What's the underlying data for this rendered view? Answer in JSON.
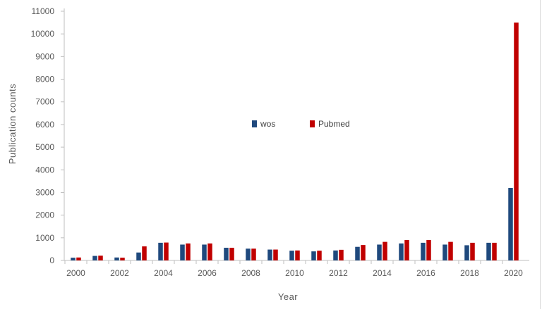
{
  "chart_data": {
    "type": "bar",
    "title": "",
    "xlabel": "Year",
    "ylabel": "Publication counts",
    "ylim": [
      0,
      11000
    ],
    "y_ticks": [
      0,
      1000,
      2000,
      3000,
      4000,
      5000,
      6000,
      7000,
      8000,
      9000,
      10000,
      11000
    ],
    "x_tick_labels": [
      "2000",
      "2002",
      "2004",
      "2006",
      "2008",
      "2010",
      "2012",
      "2014",
      "2016",
      "2018",
      "2020"
    ],
    "categories": [
      2000,
      2001,
      2002,
      2003,
      2004,
      2005,
      2006,
      2007,
      2008,
      2009,
      2010,
      2011,
      2012,
      2013,
      2014,
      2015,
      2016,
      2017,
      2018,
      2019,
      2020
    ],
    "series": [
      {
        "name": "wos",
        "color": "#1f497d",
        "values": [
          120,
          200,
          130,
          350,
          780,
          700,
          700,
          560,
          520,
          480,
          430,
          400,
          440,
          600,
          700,
          750,
          780,
          700,
          670,
          780,
          3200
        ]
      },
      {
        "name": "Pubmed",
        "color": "#c00000",
        "values": [
          130,
          210,
          120,
          620,
          790,
          750,
          750,
          560,
          520,
          480,
          440,
          430,
          470,
          680,
          820,
          900,
          900,
          820,
          780,
          780,
          10500
        ]
      }
    ],
    "grid": false,
    "legend": "center"
  }
}
